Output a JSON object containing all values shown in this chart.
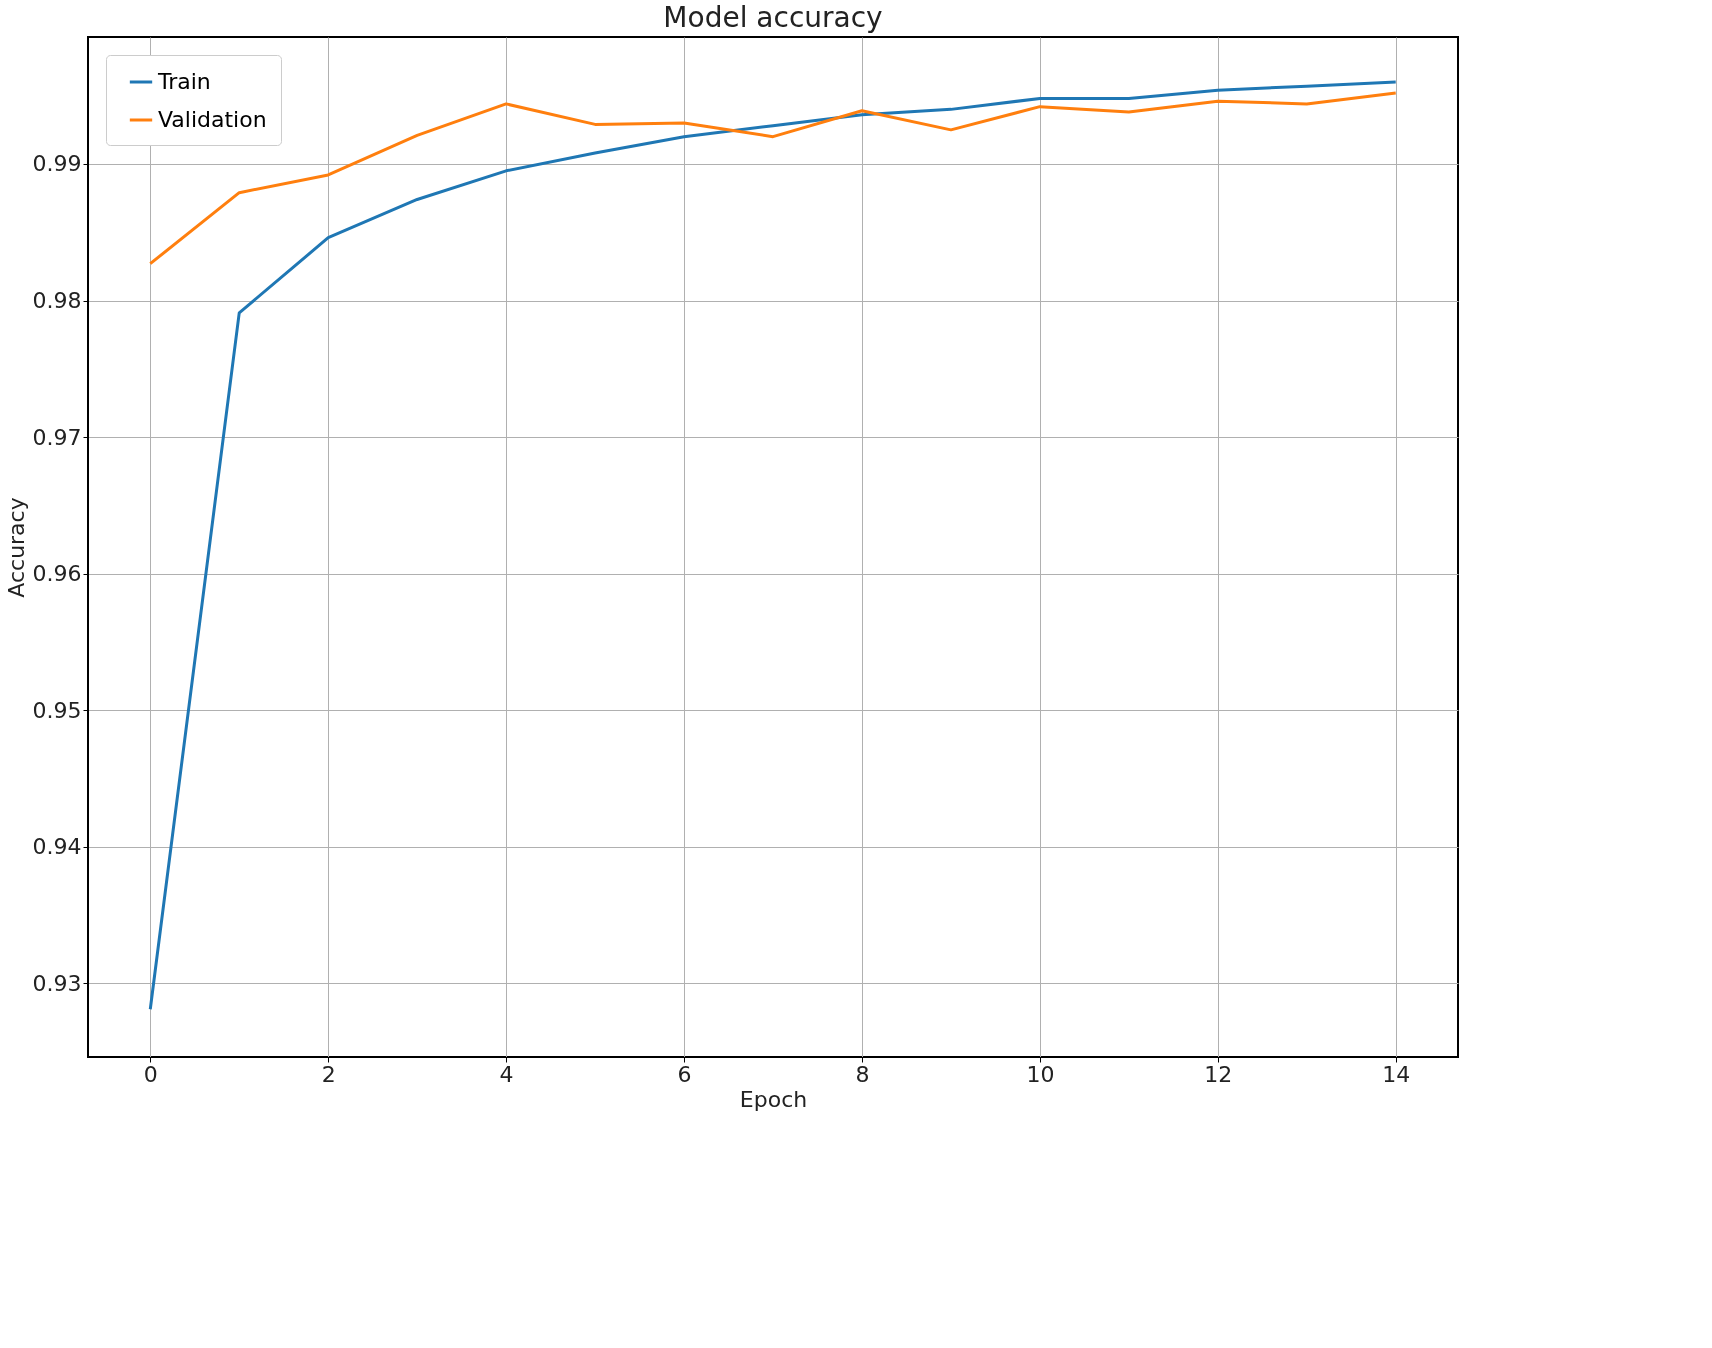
{
  "chart_data": {
    "type": "line",
    "title": "Model accuracy",
    "xlabel": "Epoch",
    "ylabel": "Accuracy",
    "x": [
      0,
      1,
      2,
      3,
      4,
      5,
      6,
      7,
      8,
      9,
      10,
      11,
      12,
      13,
      14
    ],
    "series": [
      {
        "name": "Train",
        "color": "#1f77b4",
        "values": [
          0.9281,
          0.9791,
          0.9846,
          0.9874,
          0.9895,
          0.9908,
          0.992,
          0.9928,
          0.9936,
          0.994,
          0.9948,
          0.9948,
          0.9954,
          0.9957,
          0.996
        ]
      },
      {
        "name": "Validation",
        "color": "#ff7f0e",
        "values": [
          0.9827,
          0.9879,
          0.9892,
          0.9921,
          0.9944,
          0.9929,
          0.993,
          0.992,
          0.9939,
          0.9925,
          0.9942,
          0.9938,
          0.9946,
          0.9944,
          0.9952
        ]
      }
    ],
    "xlim": [
      -0.7,
      14.7
    ],
    "ylim": [
      0.9246,
      0.9993
    ],
    "xticks": [
      0,
      2,
      4,
      6,
      8,
      10,
      12,
      14
    ],
    "yticks": [
      0.93,
      0.94,
      0.95,
      0.96,
      0.97,
      0.98,
      0.99
    ],
    "grid": true,
    "legend": "top left",
    "marker": "none",
    "line_style": "solid"
  }
}
